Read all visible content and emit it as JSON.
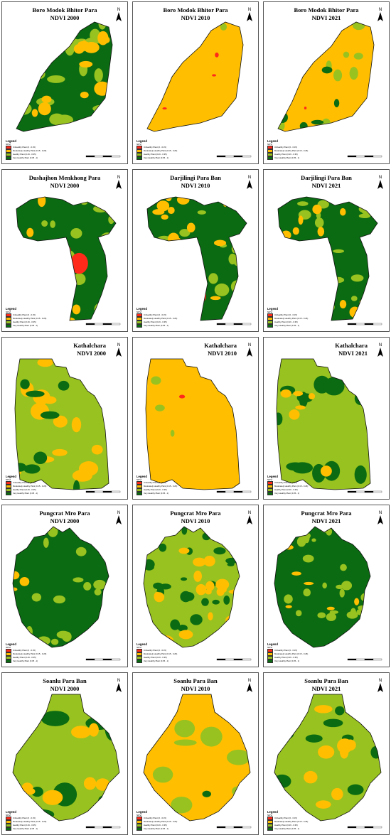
{
  "colors": {
    "unhealthy": "#ff2a1a",
    "moderately_healthy": "#ffbf00",
    "healthy": "#98c21f",
    "very_healthy": "#0a6b12"
  },
  "legend": {
    "title": "Legend",
    "subtitle": "NDVI",
    "items": [
      {
        "label": "Unhealthy Plant (0 - 0.15)",
        "color_key": "unhealthy"
      },
      {
        "label": "Moderately Healthy Plant (0.15 - 0.26)",
        "color_key": "moderately_healthy"
      },
      {
        "label": "Healthy Plant (0.26 - 0.35)",
        "color_key": "healthy"
      },
      {
        "label": "Very Healthy Plant (0.35 - 1)",
        "color_key": "very_healthy"
      }
    ]
  },
  "north_arrow": {
    "label": "N",
    "icon": "north-arrow-icon"
  },
  "panels": [
    {
      "title": "Boro Modok Bhitor Para",
      "subtitle": "NDVI 2000",
      "shape": "boro",
      "dominant": "very_healthy",
      "mix": "boro2000"
    },
    {
      "title": "Boro Modok Bhitor Para",
      "subtitle": "NDVI 2010",
      "shape": "boro",
      "dominant": "moderately_healthy",
      "mix": "boro2010"
    },
    {
      "title": "Boro Modok Bhitor Para",
      "subtitle": "NDVI 2021",
      "shape": "boro",
      "dominant": "moderately_healthy",
      "mix": "boro2021"
    },
    {
      "title": "Dushajhon Menkhong Para",
      "subtitle": "NDVI 2000",
      "shape": "dush",
      "dominant": "very_healthy",
      "mix": "dush2000"
    },
    {
      "title": "Darjilingi Para Ban",
      "subtitle": "NDVI 2010",
      "shape": "dush",
      "dominant": "very_healthy",
      "mix": "dush2010"
    },
    {
      "title": "Darjilingi Para Ban",
      "subtitle": "NDVI 2021",
      "shape": "dush",
      "dominant": "very_healthy",
      "mix": "dush2021"
    },
    {
      "title": "Kathalchara",
      "subtitle": "NDVI 2000",
      "shape": "kath",
      "dominant": "healthy",
      "mix": "kath2000"
    },
    {
      "title": "Kathalchara",
      "subtitle": "NDVI 2010",
      "shape": "kath",
      "dominant": "moderately_healthy",
      "mix": "kath2010"
    },
    {
      "title": "Kathalchara",
      "subtitle": "NDVI 2021",
      "shape": "kath",
      "dominant": "healthy",
      "mix": "kath2021"
    },
    {
      "title": "Pungcrat Mro Para",
      "subtitle": "NDVI 2000",
      "shape": "pung",
      "dominant": "very_healthy",
      "mix": "pung2000"
    },
    {
      "title": "Pungcrat Mro Para",
      "subtitle": "NDVI 2010",
      "shape": "pung",
      "dominant": "healthy",
      "mix": "pung2010"
    },
    {
      "title": "Pungcrat Mro Para",
      "subtitle": "NDVI 2021",
      "shape": "pung",
      "dominant": "very_healthy",
      "mix": "pung2021"
    },
    {
      "title": "Soanlu Para Ban",
      "subtitle": "NDVI 2000",
      "shape": "soan",
      "dominant": "healthy",
      "mix": "soan2000"
    },
    {
      "title": "Soanlu Para Ban",
      "subtitle": "NDVI 2010",
      "shape": "soan",
      "dominant": "moderately_healthy",
      "mix": "soan2010"
    },
    {
      "title": "Soanlu Para Ban",
      "subtitle": "NDVI 2021",
      "shape": "soan",
      "dominant": "healthy",
      "mix": "soan2021"
    }
  ]
}
